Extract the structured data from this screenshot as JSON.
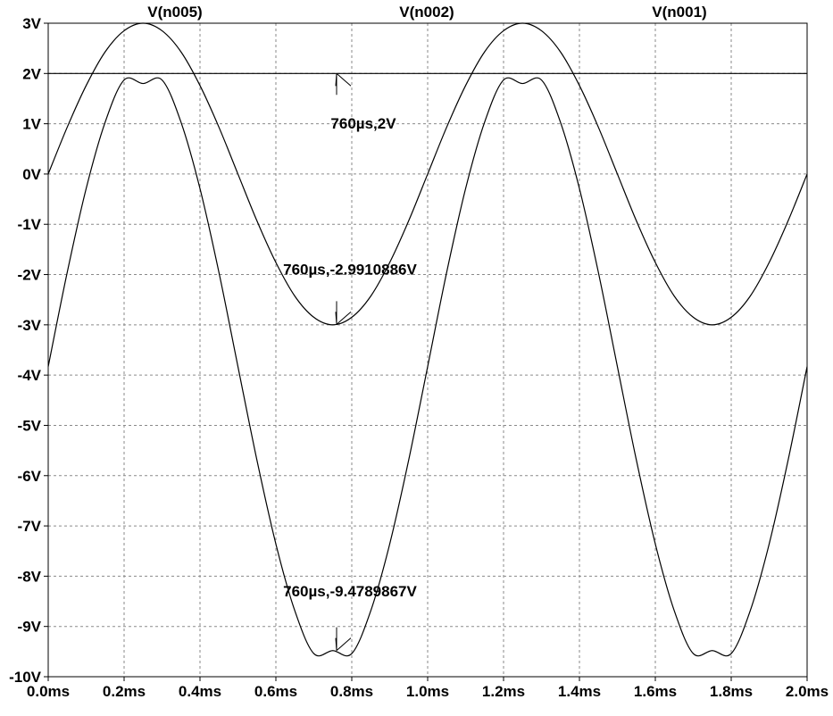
{
  "chart_data": {
    "type": "line",
    "title": "",
    "xlabel": "",
    "ylabel": "",
    "xlim": [
      0,
      2.0
    ],
    "ylim": [
      -10,
      3
    ],
    "grid": true,
    "x_ticks": [
      0,
      0.2,
      0.4,
      0.6,
      0.8,
      1.0,
      1.2,
      1.4,
      1.6,
      1.8,
      2.0
    ],
    "x_tick_labels": [
      "0.0ms",
      "0.2ms",
      "0.4ms",
      "0.6ms",
      "0.8ms",
      "1.0ms",
      "1.2ms",
      "1.4ms",
      "1.6ms",
      "1.8ms",
      "2.0ms"
    ],
    "y_ticks": [
      3,
      2,
      1,
      0,
      -1,
      -2,
      -3,
      -4,
      -5,
      -6,
      -7,
      -8,
      -9,
      -10
    ],
    "y_tick_labels": [
      "3V",
      "2V",
      "1V",
      "0V",
      "-1V",
      "-2V",
      "-3V",
      "-4V",
      "-5V",
      "-6V",
      "-7V",
      "-8V",
      "-9V",
      "-10V"
    ],
    "series": [
      {
        "name": "V(n005)",
        "color": "#000000",
        "x": [
          0,
          0.05,
          0.1,
          0.15,
          0.2,
          0.25,
          0.3,
          0.35,
          0.4,
          0.45,
          0.5,
          0.55,
          0.6,
          0.65,
          0.7,
          0.75,
          0.8,
          0.85,
          0.9,
          0.95,
          1.0,
          1.05,
          1.1,
          1.15,
          1.2,
          1.25,
          1.3,
          1.35,
          1.4,
          1.45,
          1.5,
          1.55,
          1.6,
          1.65,
          1.7,
          1.75,
          1.8,
          1.85,
          1.9,
          1.95,
          2.0
        ],
        "values": [
          0,
          0.93,
          1.76,
          2.43,
          2.85,
          3.0,
          2.85,
          2.43,
          1.76,
          0.93,
          0,
          -0.93,
          -1.76,
          -2.43,
          -2.85,
          -3.0,
          -2.85,
          -2.43,
          -1.76,
          -0.93,
          0,
          0.93,
          1.76,
          2.43,
          2.85,
          3.0,
          2.85,
          2.43,
          1.76,
          0.93,
          0,
          -0.93,
          -1.76,
          -2.43,
          -2.85,
          -3.0,
          -2.85,
          -2.43,
          -1.76,
          -0.93,
          0
        ]
      },
      {
        "name": "V(n002)",
        "color": "#000000",
        "x": [
          0,
          2.0
        ],
        "values": [
          2,
          2
        ]
      },
      {
        "name": "V(n001)",
        "color": "#000000",
        "x": [
          0,
          0.05,
          0.1,
          0.15,
          0.2,
          0.25,
          0.3,
          0.35,
          0.4,
          0.45,
          0.5,
          0.55,
          0.6,
          0.65,
          0.7,
          0.75,
          0.8,
          0.85,
          0.9,
          0.95,
          1.0,
          1.05,
          1.1,
          1.15,
          1.2,
          1.25,
          1.3,
          1.35,
          1.4,
          1.45,
          1.5,
          1.55,
          1.6,
          1.65,
          1.7,
          1.75,
          1.8,
          1.85,
          1.9,
          1.95,
          2.0
        ],
        "values": [
          -3.83,
          -1.96,
          -0.29,
          1.03,
          1.87,
          1.8,
          1.87,
          1.03,
          -0.29,
          -1.96,
          -3.83,
          -5.69,
          -7.36,
          -8.69,
          -9.54,
          -9.48,
          -9.54,
          -8.69,
          -7.36,
          -5.69,
          -3.83,
          -1.96,
          -0.29,
          1.03,
          1.87,
          1.8,
          1.87,
          1.03,
          -0.29,
          -1.96,
          -3.83,
          -5.69,
          -7.36,
          -8.69,
          -9.54,
          -9.48,
          -9.54,
          -8.69,
          -7.36,
          -5.69,
          -3.83
        ]
      }
    ],
    "annotations": [
      {
        "label": "760µs,2V",
        "x": 0.76,
        "y": 2,
        "label_x": 0.76,
        "label_y": 0.9
      },
      {
        "label": "760µs,-2.9910886V",
        "x": 0.76,
        "y": -2.9910886,
        "label_x": 0.76,
        "label_y": -2.0
      },
      {
        "label": "760µs,-9.4789867V",
        "x": 0.76,
        "y": -9.4789867,
        "label_x": 0.76,
        "label_y": -8.4
      }
    ]
  }
}
